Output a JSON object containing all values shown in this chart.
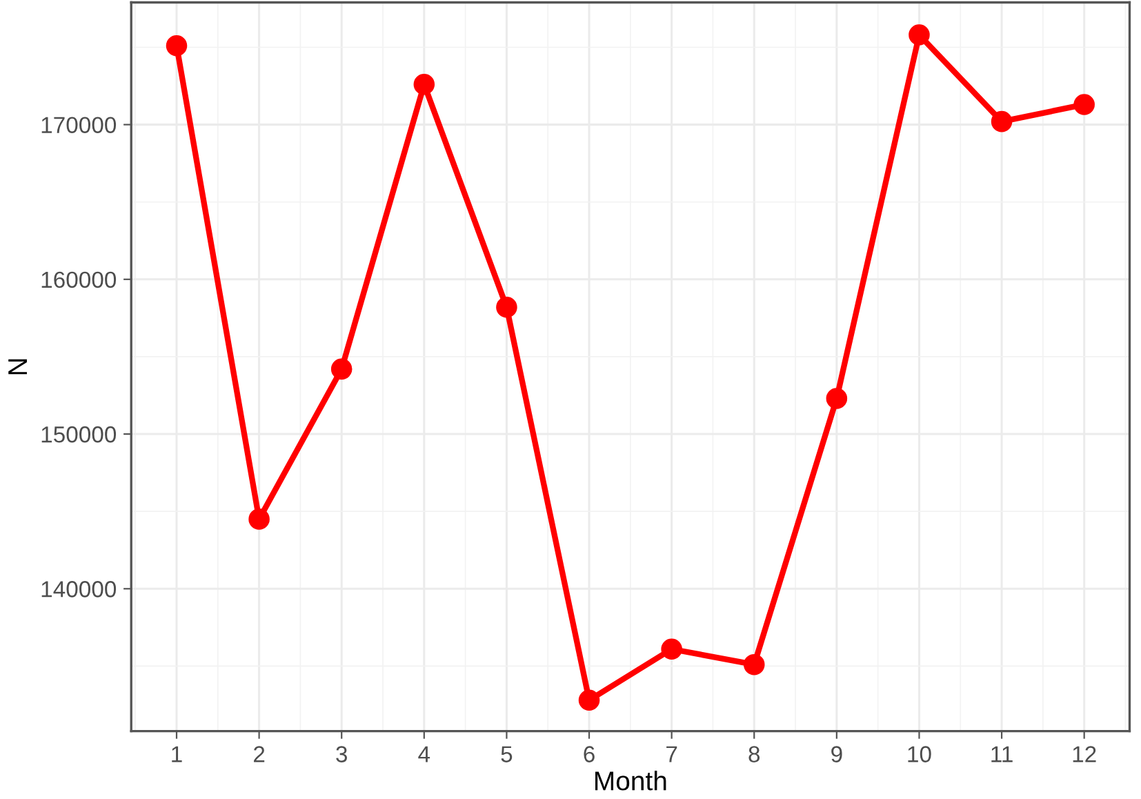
{
  "chart_data": {
    "type": "line",
    "xlabel": "Month",
    "ylabel": "N",
    "x": [
      1,
      2,
      3,
      4,
      5,
      6,
      7,
      8,
      9,
      10,
      11,
      12
    ],
    "series": [
      {
        "color": "#ff0000",
        "values": [
          175100,
          144500,
          154200,
          172600,
          158200,
          132800,
          136100,
          135100,
          152300,
          175800,
          170200,
          171300
        ]
      }
    ],
    "xlim": [
      0.45,
      12.55
    ],
    "xticks": [
      1,
      2,
      3,
      4,
      5,
      6,
      7,
      8,
      9,
      10,
      11,
      12
    ],
    "ylim": [
      130800,
      177900
    ],
    "yticks": [
      140000,
      150000,
      160000,
      170000
    ],
    "grid": true,
    "marker": "circle",
    "line_style": "solid"
  }
}
